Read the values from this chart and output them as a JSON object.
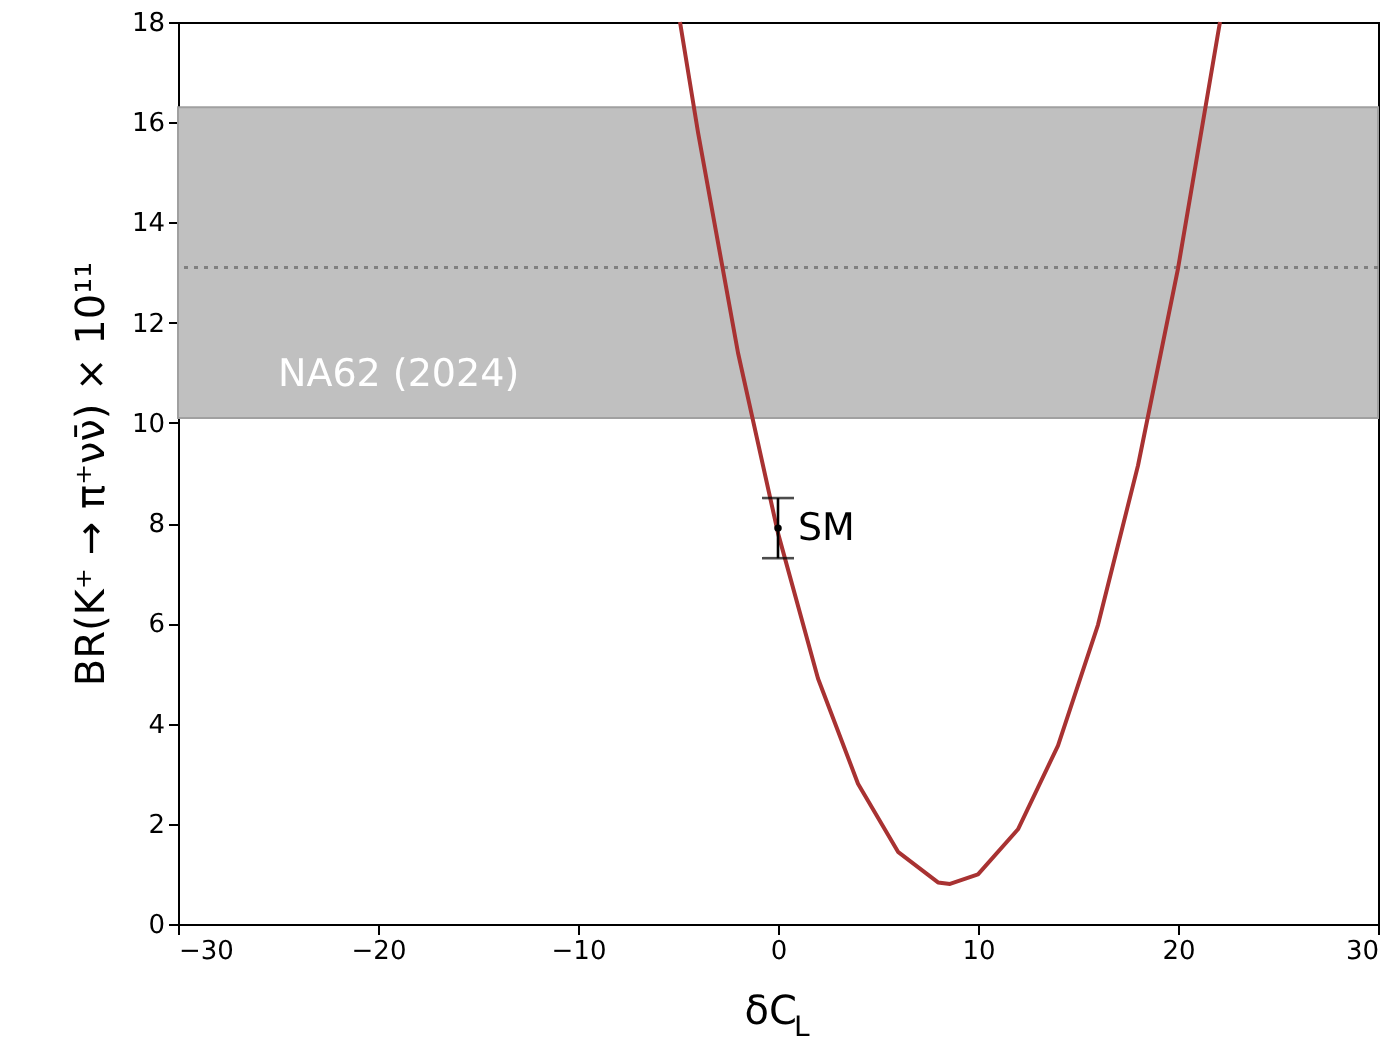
{
  "chart_data": {
    "type": "line",
    "xlabel": "δC$_{L}$",
    "ylabel": "BR(K⁺ → π⁺νν̄) × 10¹¹",
    "xlim": [
      -30,
      30
    ],
    "xticks": [
      -30,
      -20,
      -10,
      0,
      10,
      20,
      30
    ],
    "ylim": [
      0,
      18
    ],
    "yticks": [
      0,
      2,
      4,
      6,
      8,
      10,
      12,
      14,
      16,
      18
    ],
    "grid": false,
    "series": [
      {
        "color": "#a83232",
        "marker": "none",
        "line_style": "solid",
        "x": [
          -4.9,
          -4,
          -2,
          0,
          2,
          4,
          6,
          8,
          8.6,
          10,
          12,
          14,
          16,
          18,
          20,
          22,
          22.1
        ],
        "values": [
          18.0,
          15.8,
          11.4,
          7.8,
          4.9,
          2.8,
          1.44,
          0.83,
          0.8,
          0.99,
          1.89,
          3.56,
          5.97,
          9.15,
          13.08,
          17.77,
          18.0
        ]
      },
      {
        "type": "scatter",
        "name": "SM",
        "color": "#000000",
        "marker": "none",
        "x": [
          0
        ],
        "values": [
          7.9
        ],
        "errors": [
          [
            7.3,
            8.5
          ]
        ]
      }
    ],
    "bands": [
      {
        "axis": "y",
        "from": 10.1,
        "to": 16.3,
        "label": "NA62 (2024)",
        "color": "#c0c0c0"
      }
    ],
    "ref_lines": [
      {
        "axis": "y",
        "value": 13.1,
        "color": "#808080",
        "line_style": "dotted"
      }
    ]
  }
}
